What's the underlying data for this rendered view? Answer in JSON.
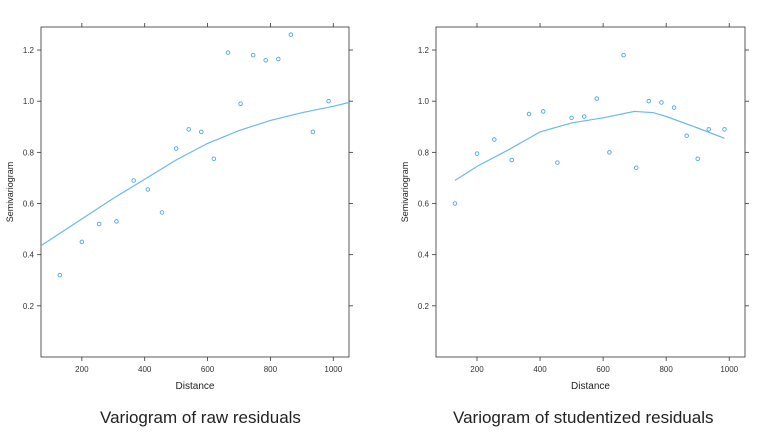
{
  "chart_data": [
    {
      "type": "scatter",
      "caption": "Variogram of raw residuals",
      "xlabel": "Distance",
      "ylabel": "Semivariogram",
      "xlim": [
        70,
        1050
      ],
      "ylim": [
        0,
        1.29
      ],
      "xticks": [
        200,
        400,
        600,
        800,
        1000
      ],
      "yticks": [
        0.2,
        0.4,
        0.6,
        0.8,
        1.0,
        1.2
      ],
      "grid": false,
      "point_color": "#4da6e8",
      "line_color": "#6cb8ee",
      "points": {
        "x": [
          130,
          200,
          255,
          310,
          365,
          410,
          455,
          500,
          540,
          580,
          620,
          665,
          705,
          745,
          785,
          825,
          865,
          935,
          985
        ],
        "y": [
          0.32,
          0.45,
          0.52,
          0.53,
          0.69,
          0.655,
          0.565,
          0.815,
          0.89,
          0.88,
          0.775,
          1.19,
          0.99,
          1.18,
          1.16,
          1.165,
          1.26,
          0.88,
          1.0
        ]
      },
      "smooth": {
        "x": [
          70,
          200,
          300,
          400,
          500,
          600,
          700,
          800,
          900,
          1000,
          1050
        ],
        "y": [
          0.435,
          0.54,
          0.62,
          0.695,
          0.77,
          0.835,
          0.885,
          0.925,
          0.955,
          0.98,
          0.995
        ]
      }
    },
    {
      "type": "scatter",
      "caption": "Variogram of studentized residuals",
      "xlabel": "Distance",
      "ylabel": "Semivariogram",
      "xlim": [
        70,
        1050
      ],
      "ylim": [
        0,
        1.29
      ],
      "xticks": [
        200,
        400,
        600,
        800,
        1000
      ],
      "yticks": [
        0.2,
        0.4,
        0.6,
        0.8,
        1.0,
        1.2
      ],
      "grid": false,
      "point_color": "#4da6e8",
      "line_color": "#6cb8ee",
      "points": {
        "x": [
          130,
          200,
          255,
          310,
          365,
          410,
          455,
          500,
          540,
          580,
          620,
          665,
          705,
          745,
          785,
          825,
          865,
          900,
          935,
          985
        ],
        "y": [
          0.6,
          0.795,
          0.85,
          0.77,
          0.95,
          0.96,
          0.76,
          0.935,
          0.94,
          1.01,
          0.8,
          1.18,
          0.74,
          1.0,
          0.995,
          0.975,
          0.865,
          0.775,
          0.89,
          0.89
        ]
      },
      "smooth": {
        "x": [
          130,
          200,
          300,
          400,
          500,
          600,
          700,
          760,
          800,
          900,
          985
        ],
        "y": [
          0.69,
          0.745,
          0.81,
          0.88,
          0.915,
          0.935,
          0.96,
          0.955,
          0.94,
          0.895,
          0.855
        ]
      }
    }
  ]
}
